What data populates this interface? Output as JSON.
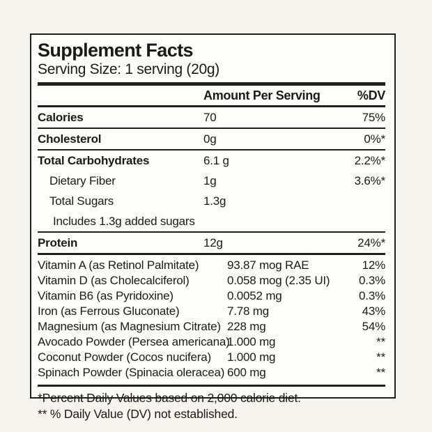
{
  "colors": {
    "ink": "#22201c",
    "card_background": "#ffffff",
    "page_background": "#f6f4ef",
    "powder_tint": "#e2d8c3"
  },
  "label": {
    "title": "Supplement Facts",
    "serving_size": "Serving Size: 1 serving (20g)",
    "columns": {
      "amount": "Amount Per Serving",
      "dv": "%DV"
    },
    "main_rows": [
      {
        "name": "Calories",
        "amount": "70",
        "dv": "75%",
        "bold": true,
        "indent": 0,
        "separator": false
      },
      {
        "name": "Cholesterol",
        "amount": "0g",
        "dv": "0%*",
        "bold": true,
        "indent": 0,
        "separator": true
      },
      {
        "name": "Total Carbohydrates",
        "amount": "6.1 g",
        "dv": "2.2%*",
        "bold": true,
        "indent": 0,
        "separator": true
      },
      {
        "name": "Dietary Fiber",
        "amount": "1g",
        "dv": "3.6%*",
        "bold": false,
        "indent": 1,
        "separator": false
      },
      {
        "name": "Total Sugars",
        "amount": "1.3g",
        "dv": "",
        "bold": false,
        "indent": 1,
        "separator": false
      },
      {
        "name": "Includes 1.3g added sugars",
        "amount": "",
        "dv": "",
        "bold": false,
        "indent": 2,
        "separator": false
      },
      {
        "name": "Protein",
        "amount": "12g",
        "dv": "24%*",
        "bold": true,
        "indent": 0,
        "separator": true
      }
    ],
    "nutrient_rows": [
      {
        "name": "Vitamin A (as Retinol Palmitate)",
        "amount": "93.87 mog RAE",
        "dv": "12%"
      },
      {
        "name": "Vitamin D (as Cholecalciferol)",
        "amount": "0.058 mog (2.35 UI)",
        "dv": "0.3%"
      },
      {
        "name": "Vitamin B6 (as Pyridoxine)",
        "amount": "0.0052 mg",
        "dv": "0.3%"
      },
      {
        "name": "Iron (as Ferrous Gluconate)",
        "amount": "7.78 mg",
        "dv": "43%"
      },
      {
        "name": "Magnesium (as Magnesium Citrate)",
        "amount": "228 mg",
        "dv": "54%"
      },
      {
        "name": "Avocado Powder (Persea americana)",
        "amount": "1.000 mg",
        "dv": "**"
      },
      {
        "name": "Coconut Powder (Cocos nucifera)",
        "amount": "1.000 mg",
        "dv": "**"
      },
      {
        "name": "Spinach Powder (Spinacia oleracea)",
        "amount": "600 mg",
        "dv": "**"
      }
    ],
    "footnotes": [
      "*Percent Daily Values based on 2,000 calorie diet.",
      "** % Daily Value (DV) not established."
    ]
  }
}
